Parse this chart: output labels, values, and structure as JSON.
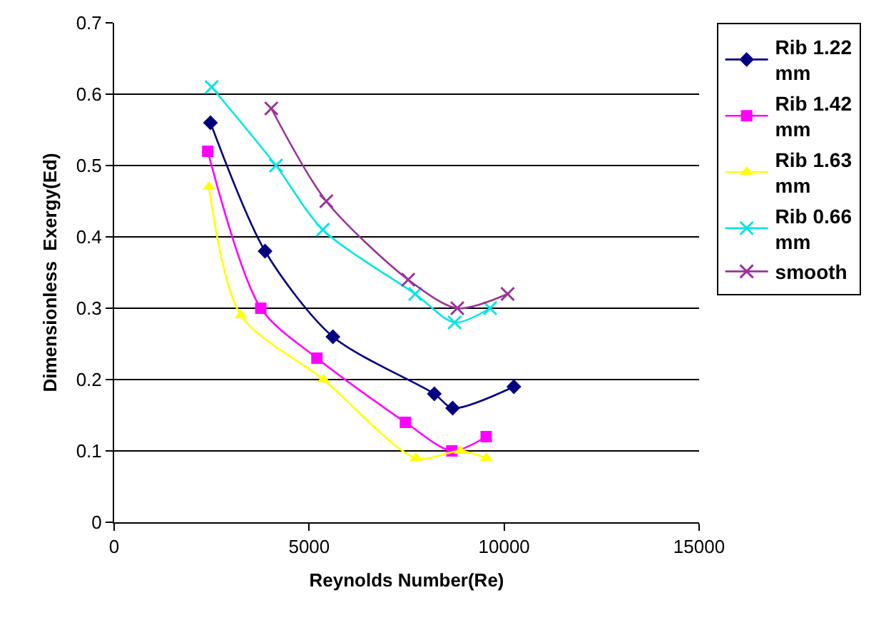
{
  "chart_data": {
    "type": "line",
    "xlabel": "Reynolds Number(Re)",
    "ylabel": "Dimensionless  Exergy(Ed)",
    "xlim": [
      0,
      15000
    ],
    "xticks": [
      0,
      5000,
      10000,
      15000
    ],
    "ylim": [
      0,
      0.7
    ],
    "yticks": [
      0,
      0.1,
      0.2,
      0.3,
      0.4,
      0.5,
      0.6,
      0.7
    ],
    "grid": "y",
    "legend": "right",
    "series": [
      {
        "name": "Rib 1.22 mm",
        "color": "#000080",
        "marker": "diamond",
        "x": [
          2470,
          3870,
          5610,
          8210,
          8680,
          10250
        ],
        "values": [
          0.56,
          0.38,
          0.26,
          0.18,
          0.16,
          0.19
        ]
      },
      {
        "name": "Rib 1.42 mm",
        "color": "#ff00ff",
        "marker": "square",
        "x": [
          2400,
          3760,
          5200,
          7470,
          8660,
          9540
        ],
        "values": [
          0.52,
          0.3,
          0.23,
          0.14,
          0.1,
          0.12
        ]
      },
      {
        "name": "Rib 1.63 mm",
        "color": "#ffff00",
        "marker": "triangle",
        "x": [
          2430,
          3250,
          5370,
          7740,
          8880,
          9540
        ],
        "values": [
          0.47,
          0.29,
          0.2,
          0.09,
          0.1,
          0.09
        ]
      },
      {
        "name": "Rib 0.66 mm",
        "color": "#00e5e5",
        "marker": "cross",
        "x": [
          2500,
          4150,
          5350,
          7720,
          8730,
          9640
        ],
        "values": [
          0.61,
          0.5,
          0.41,
          0.32,
          0.28,
          0.3
        ]
      },
      {
        "name": "smooth",
        "color": "#993399",
        "marker": "cross",
        "x": [
          4030,
          5440,
          7540,
          8800,
          10090
        ],
        "values": [
          0.58,
          0.45,
          0.34,
          0.3,
          0.32
        ]
      }
    ]
  }
}
